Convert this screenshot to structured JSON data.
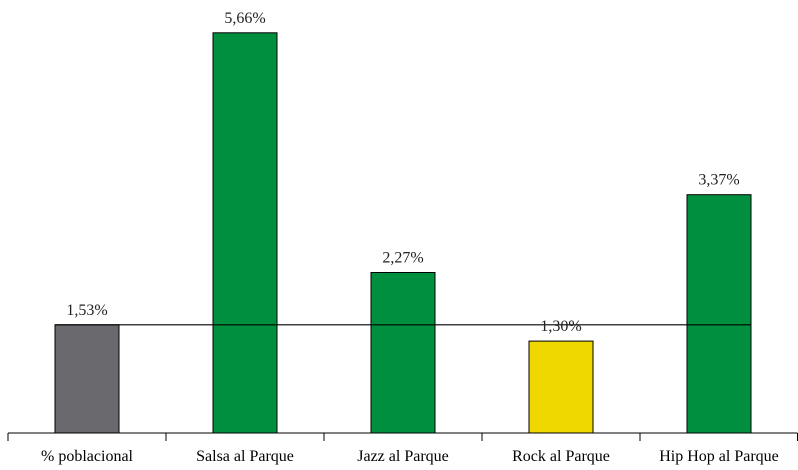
{
  "chart_data": {
    "type": "bar",
    "categories": [
      "% poblacional",
      "Salsa al Parque",
      "Jazz al Parque",
      "Rock al Parque",
      "Hip Hop al Parque"
    ],
    "values": [
      1.53,
      5.66,
      2.27,
      1.3,
      3.37
    ],
    "value_labels": [
      "1,53%",
      "5,66%",
      "2,27%",
      "1,30%",
      "3,37%"
    ],
    "bar_colors": [
      "#6a6a6e",
      "#008f3e",
      "#008f3e",
      "#eed800",
      "#008f3e"
    ],
    "reference_line": {
      "value": 1.53
    },
    "ylim": [
      0,
      6
    ],
    "grid": false,
    "legend": "none"
  }
}
